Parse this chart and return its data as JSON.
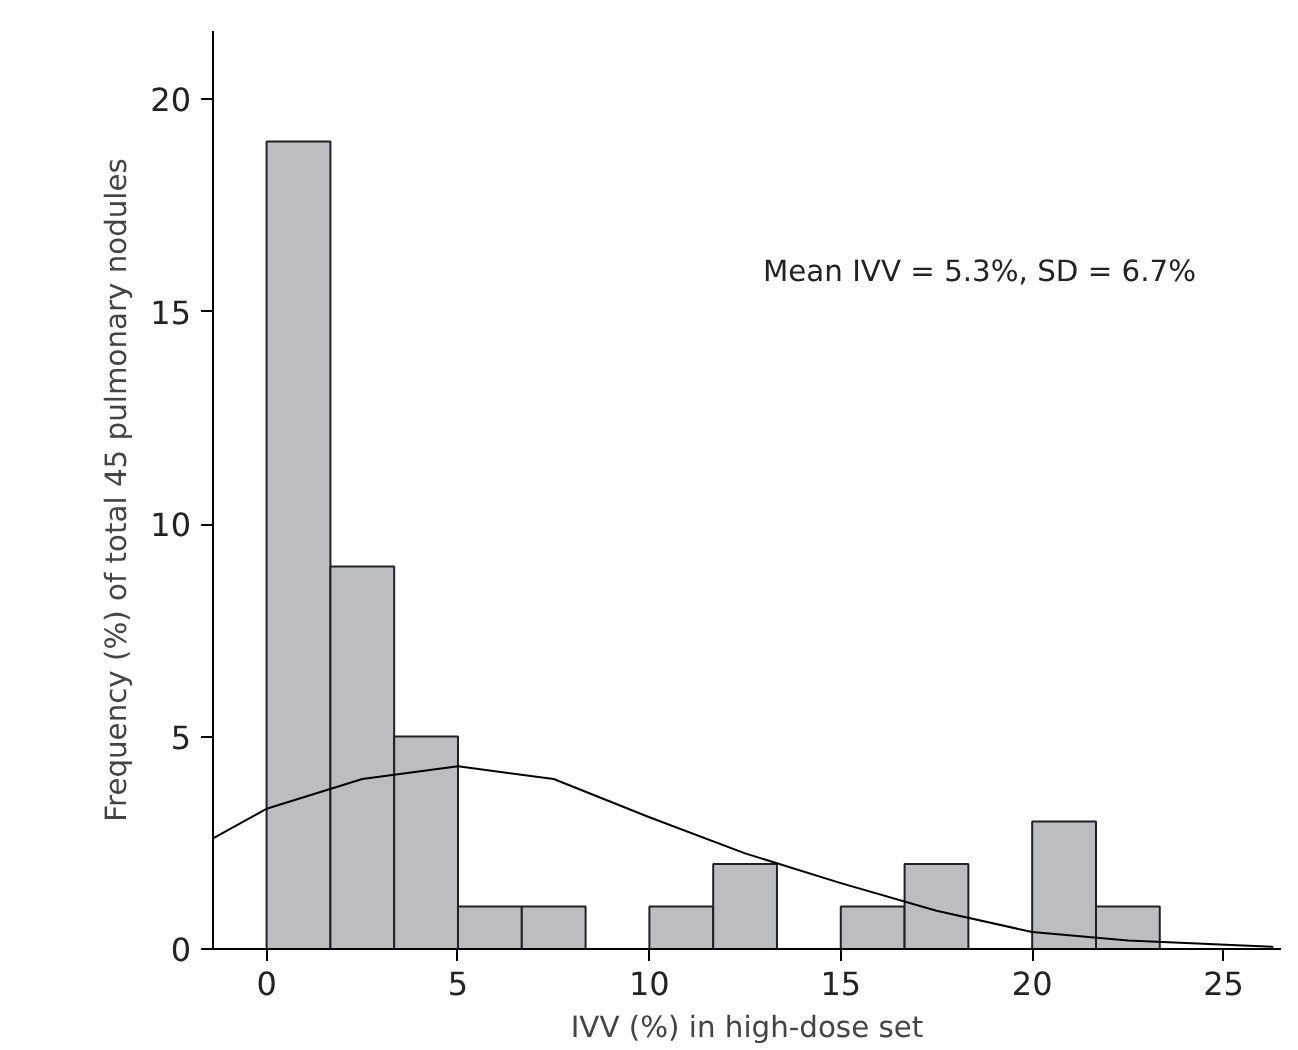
{
  "chart_data": {
    "type": "histogram",
    "xlabel": "IVV (%) in high-dose set",
    "ylabel": "Frequency (%) of total 45 pulmonary nodules",
    "bins": [
      0,
      1.667,
      3.333,
      5,
      6.667,
      8.333,
      10,
      11.667,
      13.333,
      15,
      16.667,
      18.333,
      20,
      21.667,
      23.333
    ],
    "values": [
      19,
      9,
      5,
      1,
      1,
      0,
      1,
      2,
      0,
      1,
      2,
      0,
      3,
      1
    ],
    "color": "#bcbdc0",
    "series": [
      {
        "type": "line",
        "color": "#000000",
        "x": [
          -1.4,
          0,
          2.5,
          5,
          7.5,
          10,
          12.5,
          15,
          17.5,
          20,
          22.5,
          26.3
        ],
        "values": [
          2.6,
          3.3,
          4.0,
          4.3,
          4.0,
          3.1,
          2.25,
          1.55,
          0.9,
          0.4,
          0.2,
          0.05
        ]
      }
    ],
    "annotations": [
      "Mean IVV = 5.3%, SD = 6.7%"
    ],
    "xlim": [
      -1.4,
      26.5
    ],
    "ylim": [
      0,
      21.6
    ],
    "xticks": [
      0,
      5,
      10,
      15,
      20,
      25
    ],
    "yticks": [
      0,
      5,
      10,
      15,
      20
    ],
    "grid": false
  }
}
